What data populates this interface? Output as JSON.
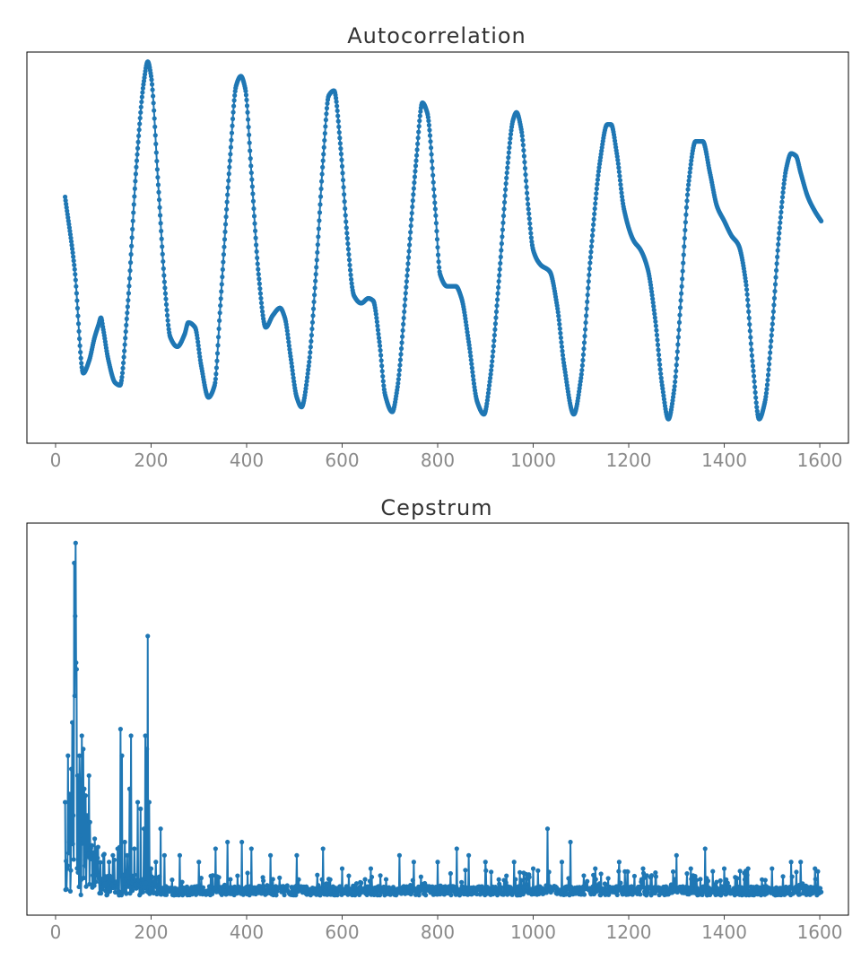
{
  "chart_data": [
    {
      "type": "line",
      "title": "Autocorrelation",
      "xlabel": "",
      "ylabel": "",
      "xlim": [
        -60,
        1660
      ],
      "ylim": [
        -0.62,
        1.0
      ],
      "xticks": [
        0,
        200,
        400,
        600,
        800,
        1000,
        1200,
        1400,
        1600
      ],
      "yticks_visible": false,
      "grid": false,
      "markers": true,
      "color": "#1f77b4",
      "x_start": 20,
      "x_end": 1603,
      "keypoints": [
        [
          20,
          0.4
        ],
        [
          40,
          0.1
        ],
        [
          58,
          -0.33
        ],
        [
          70,
          -0.28
        ],
        [
          82,
          -0.18
        ],
        [
          90,
          -0.13
        ],
        [
          95,
          -0.1
        ],
        [
          100,
          -0.15
        ],
        [
          110,
          -0.27
        ],
        [
          125,
          -0.37
        ],
        [
          135,
          -0.38
        ],
        [
          150,
          -0.08
        ],
        [
          170,
          0.55
        ],
        [
          185,
          0.88
        ],
        [
          193,
          0.96
        ],
        [
          200,
          0.9
        ],
        [
          215,
          0.45
        ],
        [
          230,
          0.0
        ],
        [
          240,
          -0.18
        ],
        [
          255,
          -0.22
        ],
        [
          270,
          -0.17
        ],
        [
          278,
          -0.12
        ],
        [
          292,
          -0.14
        ],
        [
          305,
          -0.3
        ],
        [
          320,
          -0.43
        ],
        [
          333,
          -0.38
        ],
        [
          345,
          -0.05
        ],
        [
          365,
          0.55
        ],
        [
          378,
          0.86
        ],
        [
          388,
          0.9
        ],
        [
          397,
          0.85
        ],
        [
          410,
          0.5
        ],
        [
          425,
          0.08
        ],
        [
          440,
          -0.14
        ],
        [
          455,
          -0.09
        ],
        [
          470,
          -0.06
        ],
        [
          480,
          -0.1
        ],
        [
          492,
          -0.26
        ],
        [
          505,
          -0.43
        ],
        [
          515,
          -0.47
        ],
        [
          530,
          -0.3
        ],
        [
          545,
          0.08
        ],
        [
          560,
          0.55
        ],
        [
          572,
          0.82
        ],
        [
          583,
          0.84
        ],
        [
          597,
          0.6
        ],
        [
          610,
          0.25
        ],
        [
          625,
          -0.01
        ],
        [
          640,
          -0.04
        ],
        [
          655,
          -0.02
        ],
        [
          665,
          -0.03
        ],
        [
          678,
          -0.2
        ],
        [
          690,
          -0.42
        ],
        [
          705,
          -0.49
        ],
        [
          715,
          -0.4
        ],
        [
          735,
          0.05
        ],
        [
          755,
          0.55
        ],
        [
          768,
          0.79
        ],
        [
          778,
          0.75
        ],
        [
          795,
          0.35
        ],
        [
          805,
          0.08
        ],
        [
          820,
          0.03
        ],
        [
          838,
          0.03
        ],
        [
          850,
          -0.02
        ],
        [
          865,
          -0.2
        ],
        [
          883,
          -0.45
        ],
        [
          897,
          -0.5
        ],
        [
          910,
          -0.35
        ],
        [
          930,
          0.1
        ],
        [
          945,
          0.5
        ],
        [
          958,
          0.72
        ],
        [
          965,
          0.75
        ],
        [
          975,
          0.68
        ],
        [
          990,
          0.35
        ],
        [
          1000,
          0.18
        ],
        [
          1015,
          0.12
        ],
        [
          1035,
          0.09
        ],
        [
          1050,
          -0.05
        ],
        [
          1065,
          -0.3
        ],
        [
          1085,
          -0.5
        ],
        [
          1100,
          -0.35
        ],
        [
          1120,
          0.15
        ],
        [
          1140,
          0.55
        ],
        [
          1155,
          0.7
        ],
        [
          1163,
          0.7
        ],
        [
          1175,
          0.58
        ],
        [
          1190,
          0.35
        ],
        [
          1210,
          0.22
        ],
        [
          1225,
          0.18
        ],
        [
          1240,
          0.1
        ],
        [
          1255,
          -0.1
        ],
        [
          1270,
          -0.38
        ],
        [
          1283,
          -0.52
        ],
        [
          1295,
          -0.4
        ],
        [
          1310,
          0.0
        ],
        [
          1325,
          0.45
        ],
        [
          1340,
          0.63
        ],
        [
          1355,
          0.63
        ],
        [
          1370,
          0.5
        ],
        [
          1385,
          0.36
        ],
        [
          1400,
          0.3
        ],
        [
          1415,
          0.24
        ],
        [
          1430,
          0.2
        ],
        [
          1445,
          0.05
        ],
        [
          1460,
          -0.3
        ],
        [
          1473,
          -0.52
        ],
        [
          1485,
          -0.45
        ],
        [
          1500,
          -0.15
        ],
        [
          1515,
          0.25
        ],
        [
          1530,
          0.52
        ],
        [
          1540,
          0.58
        ],
        [
          1550,
          0.57
        ],
        [
          1560,
          0.5
        ],
        [
          1575,
          0.4
        ],
        [
          1590,
          0.34
        ],
        [
          1603,
          0.3
        ]
      ]
    },
    {
      "type": "line",
      "title": "Cepstrum",
      "xlabel": "",
      "ylabel": "",
      "xlim": [
        -60,
        1660
      ],
      "ylim": [
        -0.3,
        5.6
      ],
      "xticks": [
        0,
        200,
        400,
        600,
        800,
        1000,
        1200,
        1400,
        1600
      ],
      "yticks_visible": false,
      "grid": false,
      "markers": true,
      "color": "#1f77b4",
      "x_start": 20,
      "x_end": 1603,
      "peaks": [
        [
          20,
          1.4
        ],
        [
          24,
          0.4
        ],
        [
          26,
          2.1
        ],
        [
          28,
          0.8
        ],
        [
          30,
          1.5
        ],
        [
          33,
          1.9
        ],
        [
          35,
          2.6
        ],
        [
          37,
          1.2
        ],
        [
          39,
          5.0
        ],
        [
          40,
          3.0
        ],
        [
          41,
          4.2
        ],
        [
          42,
          5.3
        ],
        [
          43,
          3.5
        ],
        [
          44,
          3.4
        ],
        [
          46,
          1.8
        ],
        [
          48,
          1.3
        ],
        [
          50,
          2.1
        ],
        [
          52,
          0.9
        ],
        [
          55,
          2.4
        ],
        [
          58,
          2.2
        ],
        [
          60,
          1.6
        ],
        [
          63,
          1.5
        ],
        [
          66,
          1.2
        ],
        [
          70,
          1.8
        ],
        [
          72,
          1.1
        ],
        [
          75,
          0.6
        ],
        [
          78,
          0.3
        ],
        [
          86,
          0.3
        ],
        [
          100,
          0.6
        ],
        [
          112,
          0.5
        ],
        [
          120,
          0.6
        ],
        [
          130,
          0.7
        ],
        [
          136,
          2.5
        ],
        [
          139,
          2.1
        ],
        [
          145,
          0.8
        ],
        [
          150,
          0.6
        ],
        [
          155,
          1.6
        ],
        [
          158,
          2.4
        ],
        [
          165,
          0.7
        ],
        [
          172,
          1.4
        ],
        [
          178,
          1.3
        ],
        [
          185,
          1.0
        ],
        [
          188,
          2.4
        ],
        [
          191,
          2.2
        ],
        [
          193,
          3.9
        ],
        [
          196,
          1.4
        ],
        [
          200,
          0.4
        ],
        [
          210,
          0.5
        ],
        [
          220,
          1.0
        ],
        [
          228,
          0.6
        ],
        [
          260,
          0.6
        ],
        [
          300,
          0.5
        ],
        [
          335,
          0.7
        ],
        [
          360,
          0.8
        ],
        [
          390,
          0.8
        ],
        [
          410,
          0.7
        ],
        [
          450,
          0.6
        ],
        [
          505,
          0.6
        ],
        [
          560,
          0.7
        ],
        [
          600,
          0.4
        ],
        [
          660,
          0.4
        ],
        [
          720,
          0.6
        ],
        [
          750,
          0.5
        ],
        [
          800,
          0.5
        ],
        [
          840,
          0.7
        ],
        [
          865,
          0.6
        ],
        [
          900,
          0.5
        ],
        [
          960,
          0.5
        ],
        [
          1000,
          0.4
        ],
        [
          1030,
          1.0
        ],
        [
          1060,
          0.5
        ],
        [
          1078,
          0.8
        ],
        [
          1130,
          0.4
        ],
        [
          1180,
          0.5
        ],
        [
          1230,
          0.4
        ],
        [
          1300,
          0.6
        ],
        [
          1330,
          0.4
        ],
        [
          1360,
          0.7
        ],
        [
          1400,
          0.4
        ],
        [
          1450,
          0.4
        ],
        [
          1500,
          0.4
        ],
        [
          1540,
          0.5
        ],
        [
          1560,
          0.5
        ],
        [
          1590,
          0.4
        ]
      ]
    }
  ]
}
